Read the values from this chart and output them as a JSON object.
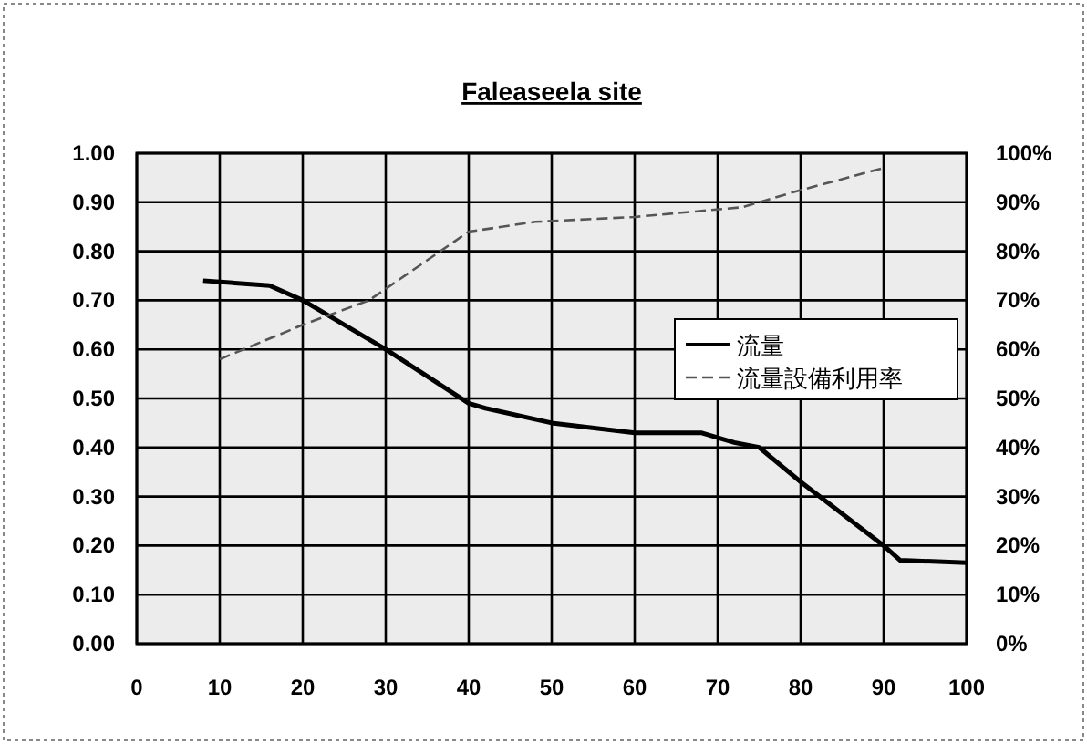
{
  "chart_data": {
    "type": "line",
    "title": "Faleaseela site",
    "x": [
      8,
      16,
      20,
      30,
      40,
      42,
      50,
      60,
      68,
      72,
      75,
      80,
      90,
      92,
      100
    ],
    "series": [
      {
        "name": "流量",
        "color": "#000000",
        "line_style": "solid",
        "values": [
          0.74,
          0.73,
          0.7,
          0.6,
          0.49,
          0.48,
          0.45,
          0.43,
          0.43,
          0.41,
          0.4,
          0.33,
          0.2,
          0.17,
          0.165
        ]
      },
      {
        "name": "流量設備利用率",
        "color": "#555555",
        "line_style": "dashed",
        "axis": "y2",
        "x": [
          10,
          20,
          28,
          40,
          48,
          60,
          73,
          79,
          90
        ],
        "values": [
          58,
          65,
          70,
          84,
          86,
          87,
          89,
          92,
          97
        ]
      }
    ],
    "xlim": [
      0,
      100
    ],
    "xticks": [
      0,
      10,
      20,
      30,
      40,
      50,
      60,
      70,
      80,
      90,
      100
    ],
    "ylim": [
      0,
      1
    ],
    "yticks": [
      {
        "value": 0,
        "label": "0.00"
      },
      {
        "value": 0.1,
        "label": "0.10"
      },
      {
        "value": 0.2,
        "label": "0.20"
      },
      {
        "value": 0.3,
        "label": "0.30"
      },
      {
        "value": 0.4,
        "label": "0.40"
      },
      {
        "value": 0.5,
        "label": "0.50"
      },
      {
        "value": 0.6,
        "label": "0.60"
      },
      {
        "value": 0.7,
        "label": "0.70"
      },
      {
        "value": 0.8,
        "label": "0.80"
      },
      {
        "value": 0.9,
        "label": "0.90"
      },
      {
        "value": 1,
        "label": "1.00"
      }
    ],
    "y2lim": [
      0,
      100
    ],
    "y2ticks": [
      {
        "value": 0,
        "label": "0%"
      },
      {
        "value": 10,
        "label": "10%"
      },
      {
        "value": 20,
        "label": "20%"
      },
      {
        "value": 30,
        "label": "30%"
      },
      {
        "value": 40,
        "label": "40%"
      },
      {
        "value": 50,
        "label": "50%"
      },
      {
        "value": 60,
        "label": "60%"
      },
      {
        "value": 70,
        "label": "70%"
      },
      {
        "value": 80,
        "label": "80%"
      },
      {
        "value": 90,
        "label": "90%"
      },
      {
        "value": 100,
        "label": "100%"
      }
    ],
    "grid": true,
    "legend": "right",
    "marker": "none"
  }
}
